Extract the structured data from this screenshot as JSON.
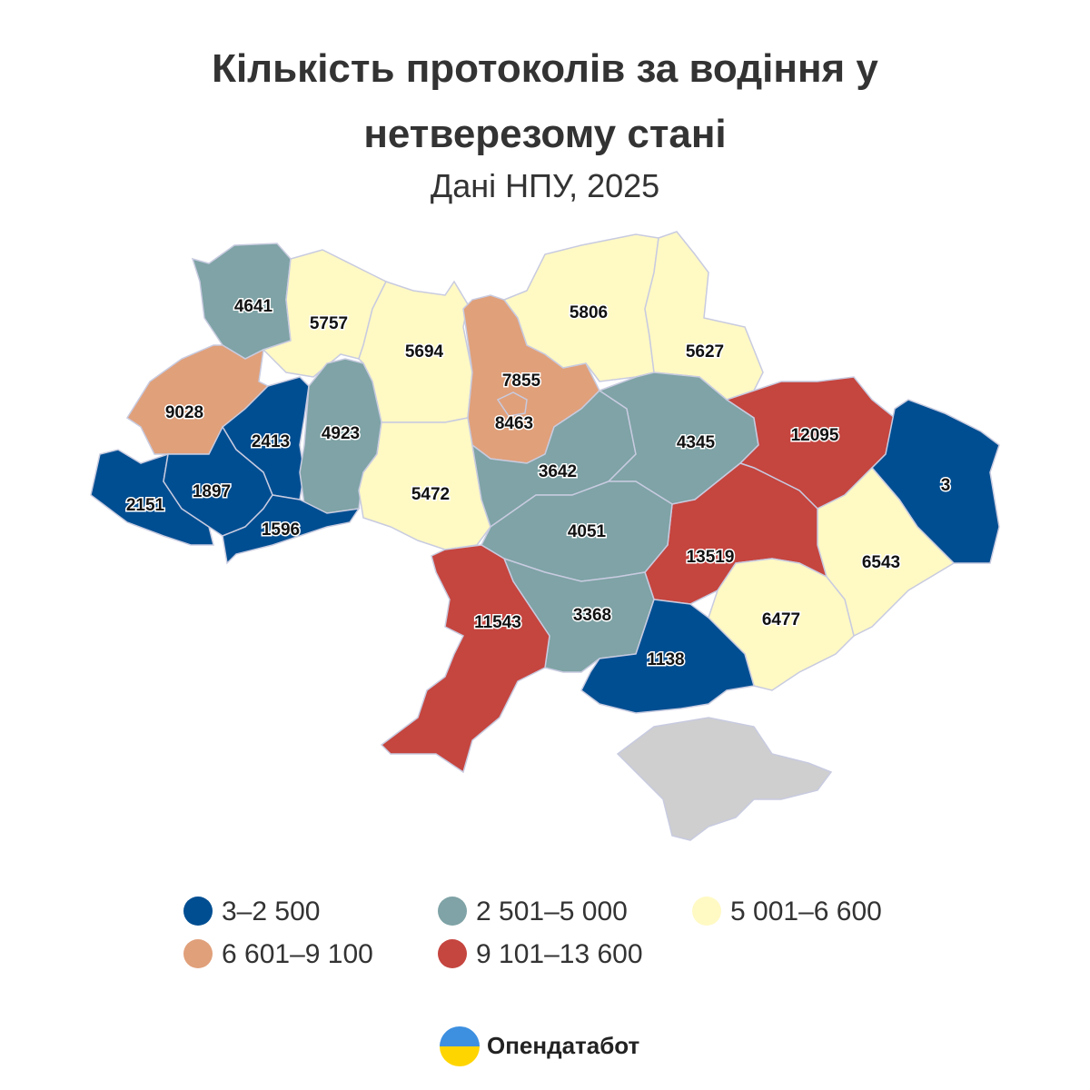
{
  "title": "Кількість протоколів за водіння у нетверезому стані",
  "subtitle": "Дані НПУ, 2025",
  "regions": [
    {
      "value": 4641,
      "color": "#7fa3a6"
    },
    {
      "value": 5757,
      "color": "#fff9c4"
    },
    {
      "value": 5694,
      "color": "#fff9c4"
    },
    {
      "value": 7855,
      "color": "#e0a07a"
    },
    {
      "value": 8463,
      "color": "#e0a07a"
    },
    {
      "value": 5806,
      "color": "#fff9c4"
    },
    {
      "value": 5627,
      "color": "#fff9c4"
    },
    {
      "value": 9028,
      "color": "#e0a07a"
    },
    {
      "value": 2413,
      "color": "#004e92"
    },
    {
      "value": 4923,
      "color": "#7fa3a6"
    },
    {
      "value": 5472,
      "color": "#fff9c4"
    },
    {
      "value": 2151,
      "color": "#004e92"
    },
    {
      "value": 1897,
      "color": "#004e92"
    },
    {
      "value": 1596,
      "color": "#004e92"
    },
    {
      "value": 3642,
      "color": "#7fa3a6"
    },
    {
      "value": 4345,
      "color": "#7fa3a6"
    },
    {
      "value": 12095,
      "color": "#c5453f"
    },
    {
      "value": 3,
      "color": "#004e92"
    },
    {
      "value": 6543,
      "color": "#fff9c4"
    },
    {
      "value": 13519,
      "color": "#c5453f"
    },
    {
      "value": 6477,
      "color": "#fff9c4"
    },
    {
      "value": 4051,
      "color": "#7fa3a6"
    },
    {
      "value": 3368,
      "color": "#7fa3a6"
    },
    {
      "value": 11543,
      "color": "#c5453f"
    },
    {
      "value": 1138,
      "color": "#004e92"
    }
  ],
  "legend": [
    {
      "label": "3–2 500",
      "color": "#004e92"
    },
    {
      "label": "2 501–5 000",
      "color": "#7fa3a6"
    },
    {
      "label": "5 001–6 600",
      "color": "#fff9c4"
    },
    {
      "label": "6 601–9 100",
      "color": "#e0a07a"
    },
    {
      "label": "9 101–13 600",
      "color": "#c5453f"
    }
  ],
  "brand": "Опендатабот"
}
